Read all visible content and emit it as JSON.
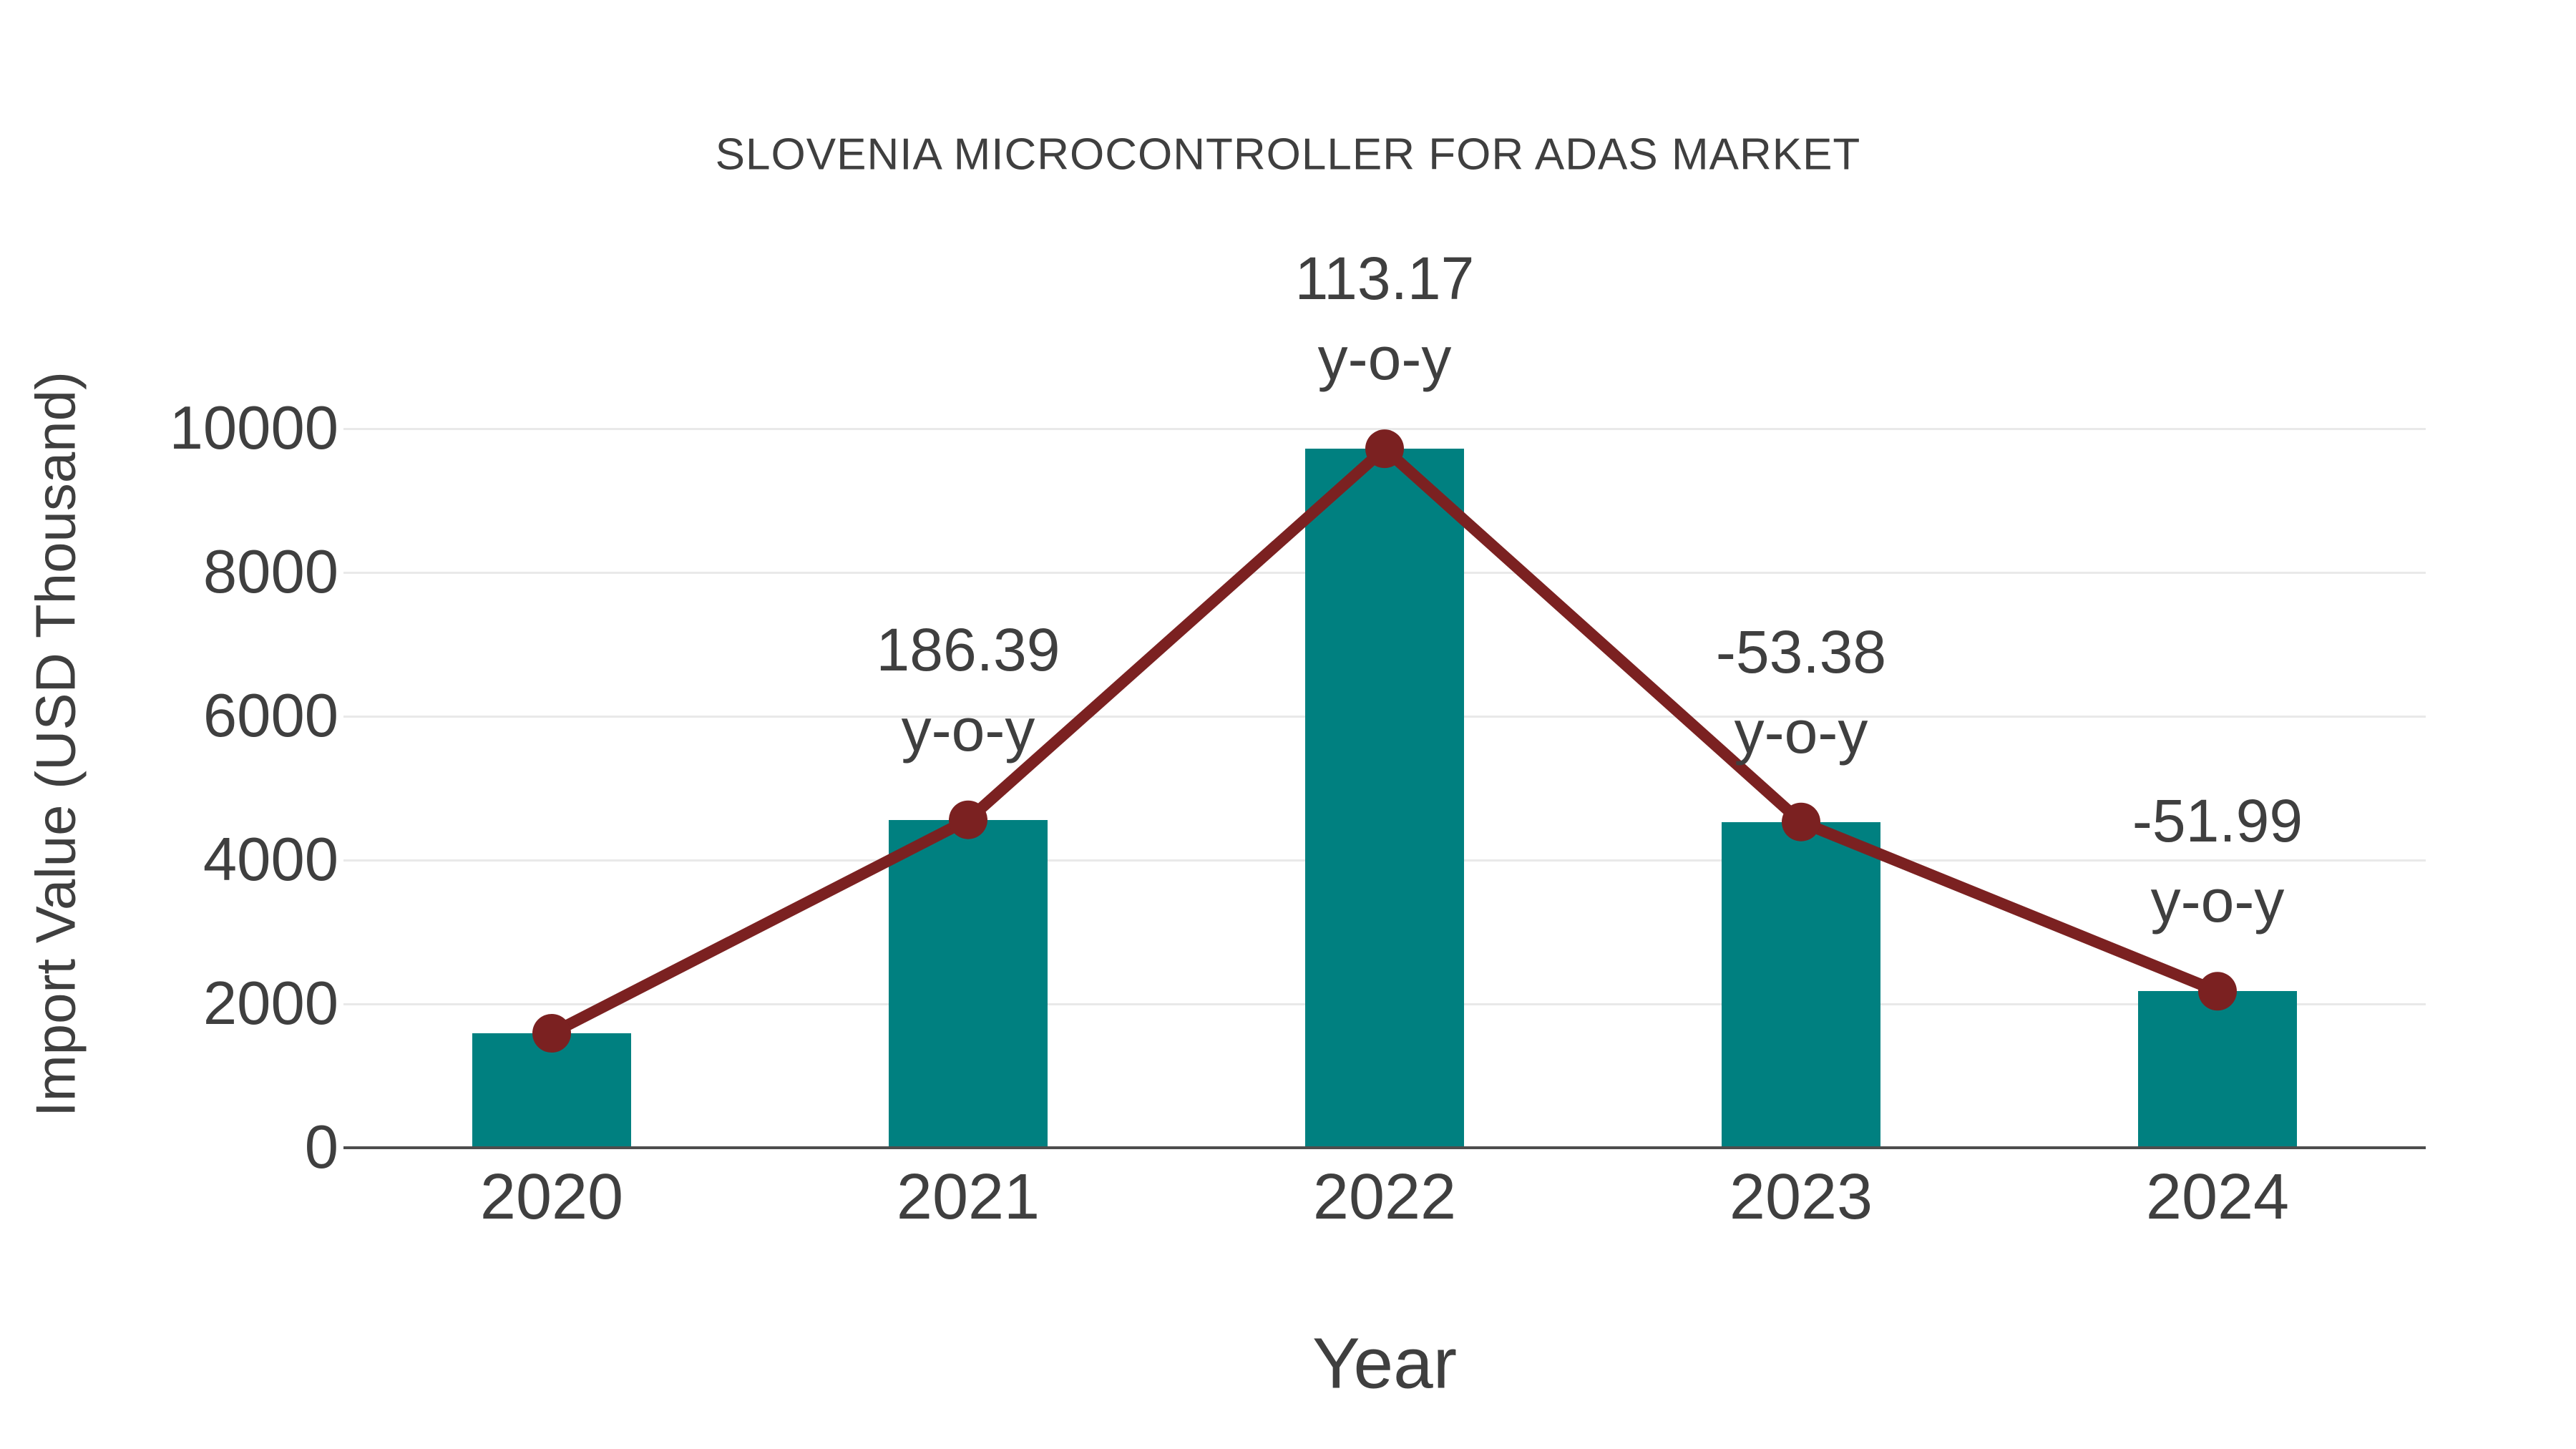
{
  "page": {
    "background": "#FFFFFF"
  },
  "chart_data": {
    "type": "bar",
    "title": "SLOVENIA MICROCONTROLLER FOR ADAS MARKET",
    "xlabel": "Year",
    "ylabel": "Import Value (USD Thousand)",
    "categories": [
      "2020",
      "2021",
      "2022",
      "2023",
      "2024"
    ],
    "series": [
      {
        "name": "Import Value",
        "type": "bar",
        "color": "#008080",
        "values": [
          1592,
          4560,
          9720,
          4530,
          2176
        ]
      },
      {
        "name": "Year-over-year trend line",
        "type": "line",
        "color": "#7B2121",
        "marker": "circle",
        "values": [
          1592,
          4560,
          9720,
          4530,
          2176
        ]
      }
    ],
    "annotations": [
      {
        "category": "2021",
        "value": "186.39",
        "suffix": "y-o-y"
      },
      {
        "category": "2022",
        "value": "113.17",
        "suffix": "y-o-y"
      },
      {
        "category": "2023",
        "value": "-53.38",
        "suffix": "y-o-y"
      },
      {
        "category": "2024",
        "value": "-51.99",
        "suffix": "y-o-y"
      }
    ],
    "yticks": [
      "0",
      "2000",
      "4000",
      "6000",
      "8000",
      "10000"
    ],
    "ylim": [
      0,
      10000
    ],
    "grid": "horizontal",
    "legend": "none",
    "colors": {
      "text": "#3F3F3F",
      "grid": "#E9E9E9",
      "axis_line": "#4D4D4D"
    }
  }
}
